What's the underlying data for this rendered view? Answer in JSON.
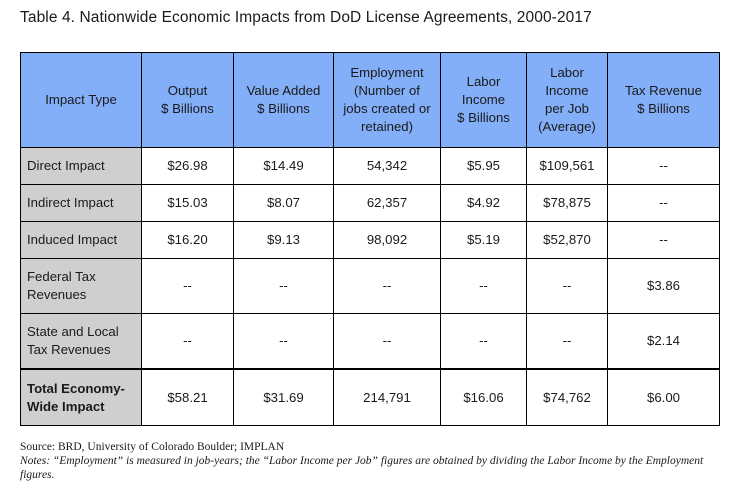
{
  "title": "Table 4. Nationwide Economic Impacts from DoD License Agreements, 2000-2017",
  "headers": [
    "Impact Type",
    "Output\n$ Billions",
    "Value Added\n$ Billions",
    "Employment\n(Number of\njobs created or\nretained)",
    "Labor\nIncome\n$ Billions",
    "Labor\nIncome\nper Job\n(Average)",
    "Tax Revenue\n$ Billions"
  ],
  "rows": [
    [
      "Direct Impact",
      "$26.98",
      "$14.49",
      "54,342",
      "$5.95",
      "$109,561",
      "--"
    ],
    [
      "Indirect Impact",
      "$15.03",
      "$8.07",
      "62,357",
      "$4.92",
      "$78,875",
      "--"
    ],
    [
      "Induced Impact",
      "$16.20",
      "$9.13",
      "98,092",
      "$5.19",
      "$52,870",
      "--"
    ],
    [
      "Federal Tax\nRevenues",
      "--",
      "--",
      "--",
      "--",
      "--",
      "$3.86"
    ],
    [
      "State and Local\nTax Revenues",
      "--",
      "--",
      "--",
      "--",
      "--",
      "$2.14"
    ],
    [
      "Total Economy-\nWide Impact",
      "$58.21",
      "$31.69",
      "214,791",
      "$16.06",
      "$74,762",
      "$6.00"
    ]
  ],
  "source": "Source:  BRD, University of Colorado Boulder; IMPLAN",
  "notes": "Notes: “Employment” is measured in job-years; the “Labor Income per Job” figures are obtained by dividing the Labor Income by the Employment figures.",
  "colors": {
    "header_bg": "#83aef8",
    "rowhead_bg": "#cfcfcf",
    "border": "#000000"
  }
}
